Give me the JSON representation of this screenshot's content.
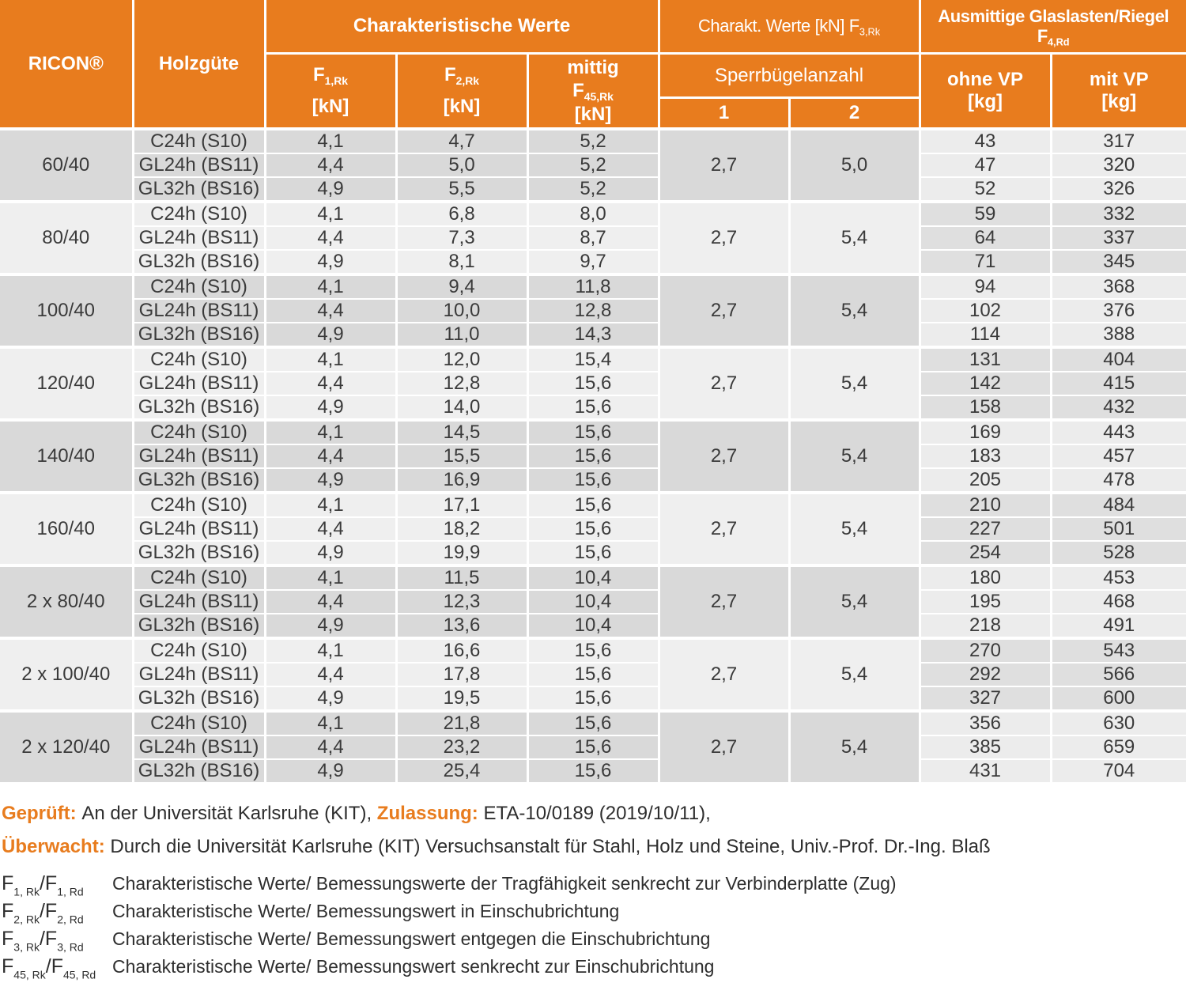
{
  "colors": {
    "orange": "#e87c1e",
    "group_dark": "#d9d9d9",
    "group_light": "#efefef",
    "vp_on_dark": "#ececec",
    "vp_on_light": "#dfdfdf",
    "text": "#3a3a3a"
  },
  "header": {
    "ricon": "RICON®",
    "holzguete": "Holzgüte",
    "char_werte": "Charakteristische Werte",
    "f1": {
      "base": "F",
      "sub": "1,Rk",
      "unit": "[kN]"
    },
    "f2": {
      "base": "F",
      "sub": "2,Rk",
      "unit": "[kN]"
    },
    "f45": {
      "pre": "mittig",
      "base": "F",
      "sub": "45,Rk",
      "unit": "[kN]"
    },
    "charakt_f3": {
      "text": "Charakt. Werte [kN] F",
      "sub": "3,Rk"
    },
    "sperrbuegel": "Sperrbügelanzahl",
    "col1": "1",
    "col2": "2",
    "ausmittig": {
      "line1": "Ausmittige Glaslasten/Riegel",
      "base": "F",
      "sub": "4,Rd"
    },
    "ohne_vp": {
      "label": "ohne VP",
      "unit": "[kg]"
    },
    "mit_vp": {
      "label": "mit VP",
      "unit": "[kg]"
    }
  },
  "table": {
    "groups": [
      {
        "size": "60/40",
        "sp1": "2,7",
        "sp2": "5,0",
        "rows": [
          {
            "grade": "C24h (S10)",
            "f1": "4,1",
            "f2": "4,7",
            "f45": "5,2",
            "ohne": "43",
            "mit": "317"
          },
          {
            "grade": "GL24h (BS11)",
            "f1": "4,4",
            "f2": "5,0",
            "f45": "5,2",
            "ohne": "47",
            "mit": "320"
          },
          {
            "grade": "GL32h (BS16)",
            "f1": "4,9",
            "f2": "5,5",
            "f45": "5,2",
            "ohne": "52",
            "mit": "326"
          }
        ]
      },
      {
        "size": "80/40",
        "sp1": "2,7",
        "sp2": "5,4",
        "rows": [
          {
            "grade": "C24h (S10)",
            "f1": "4,1",
            "f2": "6,8",
            "f45": "8,0",
            "ohne": "59",
            "mit": "332"
          },
          {
            "grade": "GL24h (BS11)",
            "f1": "4,4",
            "f2": "7,3",
            "f45": "8,7",
            "ohne": "64",
            "mit": "337"
          },
          {
            "grade": "GL32h (BS16)",
            "f1": "4,9",
            "f2": "8,1",
            "f45": "9,7",
            "ohne": "71",
            "mit": "345"
          }
        ]
      },
      {
        "size": "100/40",
        "sp1": "2,7",
        "sp2": "5,4",
        "rows": [
          {
            "grade": "C24h (S10)",
            "f1": "4,1",
            "f2": "9,4",
            "f45": "11,8",
            "ohne": "94",
            "mit": "368"
          },
          {
            "grade": "GL24h (BS11)",
            "f1": "4,4",
            "f2": "10,0",
            "f45": "12,8",
            "ohne": "102",
            "mit": "376"
          },
          {
            "grade": "GL32h (BS16)",
            "f1": "4,9",
            "f2": "11,0",
            "f45": "14,3",
            "ohne": "114",
            "mit": "388"
          }
        ]
      },
      {
        "size": "120/40",
        "sp1": "2,7",
        "sp2": "5,4",
        "rows": [
          {
            "grade": "C24h (S10)",
            "f1": "4,1",
            "f2": "12,0",
            "f45": "15,4",
            "ohne": "131",
            "mit": "404"
          },
          {
            "grade": "GL24h (BS11)",
            "f1": "4,4",
            "f2": "12,8",
            "f45": "15,6",
            "ohne": "142",
            "mit": "415"
          },
          {
            "grade": "GL32h (BS16)",
            "f1": "4,9",
            "f2": "14,0",
            "f45": "15,6",
            "ohne": "158",
            "mit": "432"
          }
        ]
      },
      {
        "size": "140/40",
        "sp1": "2,7",
        "sp2": "5,4",
        "rows": [
          {
            "grade": "C24h (S10)",
            "f1": "4,1",
            "f2": "14,5",
            "f45": "15,6",
            "ohne": "169",
            "mit": "443"
          },
          {
            "grade": "GL24h (BS11)",
            "f1": "4,4",
            "f2": "15,5",
            "f45": "15,6",
            "ohne": "183",
            "mit": "457"
          },
          {
            "grade": "GL32h (BS16)",
            "f1": "4,9",
            "f2": "16,9",
            "f45": "15,6",
            "ohne": "205",
            "mit": "478"
          }
        ]
      },
      {
        "size": "160/40",
        "sp1": "2,7",
        "sp2": "5,4",
        "rows": [
          {
            "grade": "C24h (S10)",
            "f1": "4,1",
            "f2": "17,1",
            "f45": "15,6",
            "ohne": "210",
            "mit": "484"
          },
          {
            "grade": "GL24h (BS11)",
            "f1": "4,4",
            "f2": "18,2",
            "f45": "15,6",
            "ohne": "227",
            "mit": "501"
          },
          {
            "grade": "GL32h (BS16)",
            "f1": "4,9",
            "f2": "19,9",
            "f45": "15,6",
            "ohne": "254",
            "mit": "528"
          }
        ]
      },
      {
        "size": "2 x 80/40",
        "sp1": "2,7",
        "sp2": "5,4",
        "rows": [
          {
            "grade": "C24h (S10)",
            "f1": "4,1",
            "f2": "11,5",
            "f45": "10,4",
            "ohne": "180",
            "mit": "453"
          },
          {
            "grade": "GL24h (BS11)",
            "f1": "4,4",
            "f2": "12,3",
            "f45": "10,4",
            "ohne": "195",
            "mit": "468"
          },
          {
            "grade": "GL32h (BS16)",
            "f1": "4,9",
            "f2": "13,6",
            "f45": "10,4",
            "ohne": "218",
            "mit": "491"
          }
        ]
      },
      {
        "size": "2 x 100/40",
        "sp1": "2,7",
        "sp2": "5,4",
        "rows": [
          {
            "grade": "C24h (S10)",
            "f1": "4,1",
            "f2": "16,6",
            "f45": "15,6",
            "ohne": "270",
            "mit": "543"
          },
          {
            "grade": "GL24h (BS11)",
            "f1": "4,4",
            "f2": "17,8",
            "f45": "15,6",
            "ohne": "292",
            "mit": "566"
          },
          {
            "grade": "GL32h (BS16)",
            "f1": "4,9",
            "f2": "19,5",
            "f45": "15,6",
            "ohne": "327",
            "mit": "600"
          }
        ]
      },
      {
        "size": "2 x 120/40",
        "sp1": "2,7",
        "sp2": "5,4",
        "rows": [
          {
            "grade": "C24h (S10)",
            "f1": "4,1",
            "f2": "21,8",
            "f45": "15,6",
            "ohne": "356",
            "mit": "630"
          },
          {
            "grade": "GL24h (BS11)",
            "f1": "4,4",
            "f2": "23,2",
            "f45": "15,6",
            "ohne": "385",
            "mit": "659"
          },
          {
            "grade": "GL32h (BS16)",
            "f1": "4,9",
            "f2": "25,4",
            "f45": "15,6",
            "ohne": "431",
            "mit": "704"
          }
        ]
      }
    ]
  },
  "footer": {
    "line1": [
      {
        "label": "Geprüft: "
      },
      {
        "text": "An der Universität Karlsruhe (KIT), "
      },
      {
        "label": "Zulassung: "
      },
      {
        "text": "ETA-10/0189 (2019/10/11),"
      }
    ],
    "line2": [
      {
        "label": "Überwacht: "
      },
      {
        "text": "Durch die Universität Karlsruhe (KIT) Versuchsanstalt für Stahl, Holz und Steine, Univ.-Prof. Dr.-Ing. Blaß"
      }
    ]
  },
  "footnotes": [
    {
      "parts": [
        {
          "t": "F"
        },
        {
          "s": "1, Rk"
        },
        {
          "t": "/F"
        },
        {
          "s": "1, Rd"
        }
      ],
      "text": "Charakteristische Werte/ Bemessungswerte der Tragfähigkeit senkrecht zur Verbinderplatte (Zug)"
    },
    {
      "parts": [
        {
          "t": "F"
        },
        {
          "s": "2, Rk"
        },
        {
          "t": "/F"
        },
        {
          "s": "2, Rd"
        }
      ],
      "text": "Charakteristische Werte/ Bemessungswert in Einschubrichtung"
    },
    {
      "parts": [
        {
          "t": "F"
        },
        {
          "s": "3, Rk"
        },
        {
          "t": "/F"
        },
        {
          "s": "3, Rd"
        }
      ],
      "text": "Charakteristische Werte/ Bemessungswert entgegen die Einschubrichtung"
    },
    {
      "parts": [
        {
          "t": "F"
        },
        {
          "s": "45, Rk"
        },
        {
          "t": "/F"
        },
        {
          "s": "45, Rd"
        }
      ],
      "text": "Charakteristische Werte/ Bemessungswert senkrecht zur Einschubrichtung"
    }
  ]
}
